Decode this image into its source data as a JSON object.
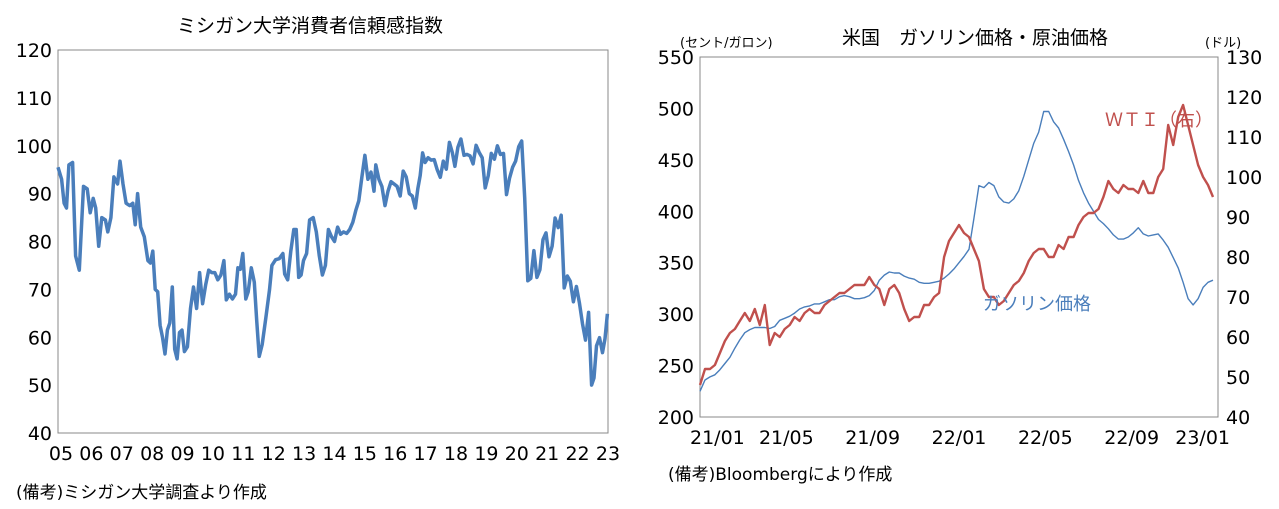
{
  "chart_data": [
    {
      "type": "line",
      "title": "ミシガン大学消費者信頼感指数",
      "xlabel": "",
      "ylabel": "",
      "ylim": [
        40,
        120
      ],
      "yticks": [
        "120",
        "110",
        "100",
        "90",
        "80",
        "70",
        "60",
        "50",
        "40"
      ],
      "xticks": [
        "05",
        "06",
        "07",
        "08",
        "09",
        "10",
        "11",
        "12",
        "13",
        "14",
        "15",
        "16",
        "17",
        "18",
        "19",
        "20",
        "21",
        "22",
        "23"
      ],
      "xlim": [
        2005,
        2023.1
      ],
      "source_note": "(備考)ミシガン大学調査より作成",
      "colors": {
        "line": "#4a7ebb",
        "frame": "#888888"
      },
      "series": [
        {
          "name": "ミシガン大学消費者信頼感指数",
          "points": [
            [
              2005.0,
              95.5
            ],
            [
              2005.12,
              93
            ],
            [
              2005.2,
              88
            ],
            [
              2005.28,
              87
            ],
            [
              2005.36,
              96
            ],
            [
              2005.48,
              96.5
            ],
            [
              2005.58,
              77
            ],
            [
              2005.7,
              74
            ],
            [
              2005.84,
              91.5
            ],
            [
              2005.96,
              91
            ],
            [
              2006.06,
              86
            ],
            [
              2006.16,
              89
            ],
            [
              2006.24,
              87
            ],
            [
              2006.34,
              79
            ],
            [
              2006.44,
              85
            ],
            [
              2006.56,
              84.5
            ],
            [
              2006.64,
              82
            ],
            [
              2006.74,
              85
            ],
            [
              2006.84,
              93.5
            ],
            [
              2006.96,
              92
            ],
            [
              2007.04,
              96.8
            ],
            [
              2007.14,
              92
            ],
            [
              2007.24,
              88
            ],
            [
              2007.36,
              87.5
            ],
            [
              2007.46,
              88
            ],
            [
              2007.54,
              83.5
            ],
            [
              2007.62,
              90
            ],
            [
              2007.72,
              83
            ],
            [
              2007.84,
              81
            ],
            [
              2007.96,
              76
            ],
            [
              2008.04,
              75.5
            ],
            [
              2008.12,
              78
            ],
            [
              2008.2,
              70
            ],
            [
              2008.28,
              69.5
            ],
            [
              2008.36,
              62.5
            ],
            [
              2008.44,
              60
            ],
            [
              2008.52,
              56.5
            ],
            [
              2008.6,
              61.5
            ],
            [
              2008.68,
              63
            ],
            [
              2008.76,
              70.5
            ],
            [
              2008.84,
              57.5
            ],
            [
              2008.92,
              55.5
            ],
            [
              2009.0,
              61
            ],
            [
              2009.08,
              61.5
            ],
            [
              2009.16,
              57
            ],
            [
              2009.26,
              58
            ],
            [
              2009.36,
              66
            ],
            [
              2009.46,
              70.5
            ],
            [
              2009.56,
              66
            ],
            [
              2009.66,
              73.5
            ],
            [
              2009.76,
              67
            ],
            [
              2009.86,
              71
            ],
            [
              2009.96,
              74
            ],
            [
              2010.06,
              73.5
            ],
            [
              2010.16,
              73.5
            ],
            [
              2010.26,
              72
            ],
            [
              2010.36,
              73
            ],
            [
              2010.46,
              76
            ],
            [
              2010.54,
              67.8
            ],
            [
              2010.64,
              69
            ],
            [
              2010.74,
              68
            ],
            [
              2010.84,
              69
            ],
            [
              2010.92,
              74.5
            ],
            [
              2011.0,
              74.2
            ],
            [
              2011.08,
              77.5
            ],
            [
              2011.18,
              68
            ],
            [
              2011.26,
              69.5
            ],
            [
              2011.36,
              74.5
            ],
            [
              2011.46,
              71.5
            ],
            [
              2011.54,
              63.5
            ],
            [
              2011.62,
              56
            ],
            [
              2011.72,
              58.5
            ],
            [
              2011.84,
              64
            ],
            [
              2011.96,
              69.9
            ],
            [
              2012.04,
              75
            ],
            [
              2012.16,
              76.2
            ],
            [
              2012.28,
              76.4
            ],
            [
              2012.4,
              77.5
            ],
            [
              2012.46,
              73.2
            ],
            [
              2012.56,
              72
            ],
            [
              2012.66,
              78
            ],
            [
              2012.76,
              82.5
            ],
            [
              2012.84,
              82.5
            ],
            [
              2012.92,
              72.5
            ],
            [
              2013.0,
              73
            ],
            [
              2013.08,
              76
            ],
            [
              2013.18,
              77.5
            ],
            [
              2013.28,
              84.5
            ],
            [
              2013.4,
              85
            ],
            [
              2013.5,
              82
            ],
            [
              2013.6,
              77
            ],
            [
              2013.7,
              73
            ],
            [
              2013.8,
              75
            ],
            [
              2013.9,
              82.5
            ],
            [
              2014.0,
              81
            ],
            [
              2014.1,
              80
            ],
            [
              2014.2,
              83
            ],
            [
              2014.3,
              81.5
            ],
            [
              2014.4,
              82
            ],
            [
              2014.5,
              81.7
            ],
            [
              2014.6,
              82.5
            ],
            [
              2014.7,
              84
            ],
            [
              2014.8,
              86.5
            ],
            [
              2014.9,
              88.5
            ],
            [
              2015.0,
              93.5
            ],
            [
              2015.1,
              98
            ],
            [
              2015.2,
              93
            ],
            [
              2015.3,
              94.5
            ],
            [
              2015.4,
              90.5
            ],
            [
              2015.46,
              96
            ],
            [
              2015.56,
              93
            ],
            [
              2015.66,
              91.5
            ],
            [
              2015.76,
              87.5
            ],
            [
              2015.86,
              90.5
            ],
            [
              2015.96,
              92.5
            ],
            [
              2016.06,
              92
            ],
            [
              2016.16,
              91.5
            ],
            [
              2016.26,
              89.5
            ],
            [
              2016.36,
              94.7
            ],
            [
              2016.46,
              93.5
            ],
            [
              2016.56,
              90
            ],
            [
              2016.66,
              89.5
            ],
            [
              2016.76,
              87
            ],
            [
              2016.84,
              91
            ],
            [
              2016.92,
              93.8
            ],
            [
              2017.0,
              98.5
            ],
            [
              2017.08,
              96.5
            ],
            [
              2017.18,
              97.5
            ],
            [
              2017.28,
              97
            ],
            [
              2017.38,
              97.1
            ],
            [
              2017.48,
              95
            ],
            [
              2017.58,
              93.4
            ],
            [
              2017.68,
              96.8
            ],
            [
              2017.78,
              95.1
            ],
            [
              2017.88,
              100.7
            ],
            [
              2017.98,
              98.5
            ],
            [
              2018.06,
              95.7
            ],
            [
              2018.16,
              99.7
            ],
            [
              2018.26,
              101.4
            ],
            [
              2018.36,
              98
            ],
            [
              2018.46,
              98.2
            ],
            [
              2018.56,
              97.9
            ],
            [
              2018.66,
              96.2
            ],
            [
              2018.76,
              100.1
            ],
            [
              2018.86,
              98.6
            ],
            [
              2018.96,
              97.5
            ],
            [
              2019.06,
              91.2
            ],
            [
              2019.16,
              93.8
            ],
            [
              2019.26,
              98.4
            ],
            [
              2019.36,
              97.2
            ],
            [
              2019.46,
              100
            ],
            [
              2019.56,
              98.2
            ],
            [
              2019.66,
              98.4
            ],
            [
              2019.76,
              89.8
            ],
            [
              2019.86,
              93.2
            ],
            [
              2019.96,
              95.5
            ],
            [
              2020.06,
              96.8
            ],
            [
              2020.16,
              99.8
            ],
            [
              2020.26,
              101
            ],
            [
              2020.36,
              89.1
            ],
            [
              2020.46,
              71.8
            ],
            [
              2020.56,
              72.3
            ],
            [
              2020.66,
              78.1
            ],
            [
              2020.76,
              72.5
            ],
            [
              2020.86,
              74.1
            ],
            [
              2020.96,
              80.4
            ],
            [
              2021.06,
              81.8
            ],
            [
              2021.16,
              76.8
            ],
            [
              2021.26,
              79
            ],
            [
              2021.36,
              84.9
            ],
            [
              2021.46,
              82.9
            ],
            [
              2021.56,
              85.5
            ],
            [
              2021.66,
              70.3
            ],
            [
              2021.76,
              72.8
            ],
            [
              2021.86,
              71.7
            ],
            [
              2021.96,
              67.4
            ],
            [
              2022.06,
              70.6
            ],
            [
              2022.16,
              67.2
            ],
            [
              2022.26,
              62.8
            ],
            [
              2022.36,
              59.4
            ],
            [
              2022.46,
              65.2
            ],
            [
              2022.56,
              50
            ],
            [
              2022.64,
              51.5
            ],
            [
              2022.72,
              58.2
            ],
            [
              2022.82,
              59.9
            ],
            [
              2022.92,
              56.8
            ],
            [
              2023.0,
              59.7
            ],
            [
              2023.08,
              64.9
            ]
          ]
        }
      ]
    },
    {
      "type": "line",
      "title": "米国　ガソリン価格・原油価格",
      "ylabel": "(セント/ガロン)",
      "y2label": "(ドル)",
      "ylim": [
        200,
        550
      ],
      "y2lim": [
        40,
        130
      ],
      "yticks": [
        "550",
        "500",
        "450",
        "400",
        "350",
        "300",
        "250",
        "200"
      ],
      "y2ticks": [
        "130",
        "120",
        "110",
        "100",
        "90",
        "80",
        "70",
        "60",
        "50",
        "40"
      ],
      "xticks": [
        "21/01",
        "21/05",
        "21/09",
        "22/01",
        "22/05",
        "22/09",
        "23/01"
      ],
      "xlim": [
        0,
        104
      ],
      "source_note": "(備考)Bloombergにより作成",
      "colors": {
        "gasoline": "#4a7ebb",
        "wti": "#c0504d",
        "frame": "#888888"
      },
      "series": [
        {
          "name": "ガソリン価格",
          "axis": "left",
          "values": [
            225,
            236,
            239,
            241,
            246,
            252,
            258,
            267,
            275,
            282,
            285,
            287,
            287,
            287,
            286,
            288,
            294,
            296,
            298,
            301,
            305,
            307,
            308,
            310,
            310,
            312,
            314,
            314,
            317,
            318,
            317,
            315,
            315,
            316,
            318,
            323,
            333,
            338,
            341,
            340,
            340,
            337,
            335,
            334,
            331,
            330,
            330,
            331,
            332,
            335,
            339,
            344,
            350,
            356,
            363,
            393,
            425,
            423,
            428,
            425,
            414,
            409,
            408,
            412,
            420,
            434,
            450,
            466,
            477,
            497,
            497,
            487,
            481,
            470,
            458,
            445,
            430,
            418,
            408,
            400,
            392,
            388,
            383,
            377,
            373,
            373,
            375,
            379,
            384,
            378,
            376,
            377,
            378,
            372,
            365,
            355,
            345,
            331,
            315,
            309,
            315,
            326,
            331,
            333
          ]
        },
        {
          "name": "ＷＴＩ（右）",
          "axis": "right",
          "values": [
            48,
            52,
            52,
            53,
            56,
            59,
            61,
            62,
            64,
            66,
            64,
            67,
            63,
            68,
            58,
            61,
            60,
            62,
            63,
            65,
            64,
            66,
            67,
            66,
            66,
            68,
            69,
            70,
            71,
            71,
            72,
            73,
            73,
            73,
            75,
            73,
            72,
            68,
            72,
            73,
            71,
            67,
            64,
            65,
            65,
            68,
            68,
            70,
            71,
            80,
            84,
            86,
            88,
            86,
            85,
            82,
            79,
            72,
            70,
            70,
            68,
            69,
            71,
            73,
            74,
            76,
            79,
            81,
            82,
            82,
            80,
            80,
            83,
            82,
            85,
            85,
            88,
            90,
            91,
            91,
            92,
            95,
            99,
            97,
            96,
            98,
            97,
            97,
            96,
            99,
            96,
            96,
            100,
            102,
            113,
            108,
            115,
            118,
            113,
            108,
            103,
            100,
            98,
            95
          ]
        }
      ],
      "annotations": [
        {
          "text": "ＷＴＩ（右）",
          "series": "ＷＴＩ（右）"
        },
        {
          "text": "ガソリン価格",
          "series": "ガソリン価格"
        }
      ]
    }
  ]
}
